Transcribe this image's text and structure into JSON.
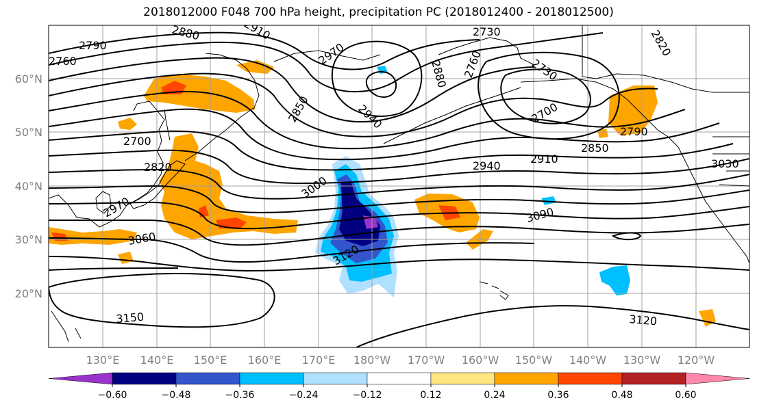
{
  "title": "2018012000 F048 700 hPa height, precipitation PC (2018012400 - 2018012500)",
  "lat_ticks": [
    "60°N",
    "50°N",
    "40°N",
    "30°N",
    "20°N"
  ],
  "lon_ticks": [
    "130°E",
    "140°E",
    "150°E",
    "160°E",
    "170°E",
    "180°W",
    "170°W",
    "160°W",
    "150°W",
    "140°W",
    "130°W",
    "120°W"
  ],
  "colorbar": {
    "ticks": [
      "−0.60",
      "−0.48",
      "−0.36",
      "−0.24",
      "−0.12",
      "0.12",
      "0.24",
      "0.36",
      "0.48",
      "0.60"
    ],
    "colors": [
      "#9933cc",
      "#000080",
      "#3355cc",
      "#00bfff",
      "#b0e0ff",
      "#ffffff",
      "#ffe680",
      "#ffa500",
      "#ff4500",
      "#b22222",
      "#ff88aa"
    ]
  },
  "contour_labels": [
    "2880",
    "2910",
    "2730",
    "2820",
    "2790",
    "2760",
    "2970",
    "2880",
    "2760",
    "2730",
    "2850",
    "2940",
    "2700",
    "2700",
    "2820",
    "2850",
    "2790",
    "2940",
    "2910",
    "3030",
    "3000",
    "2970",
    "3090",
    "3060",
    "3120",
    "3150",
    "3120"
  ]
}
